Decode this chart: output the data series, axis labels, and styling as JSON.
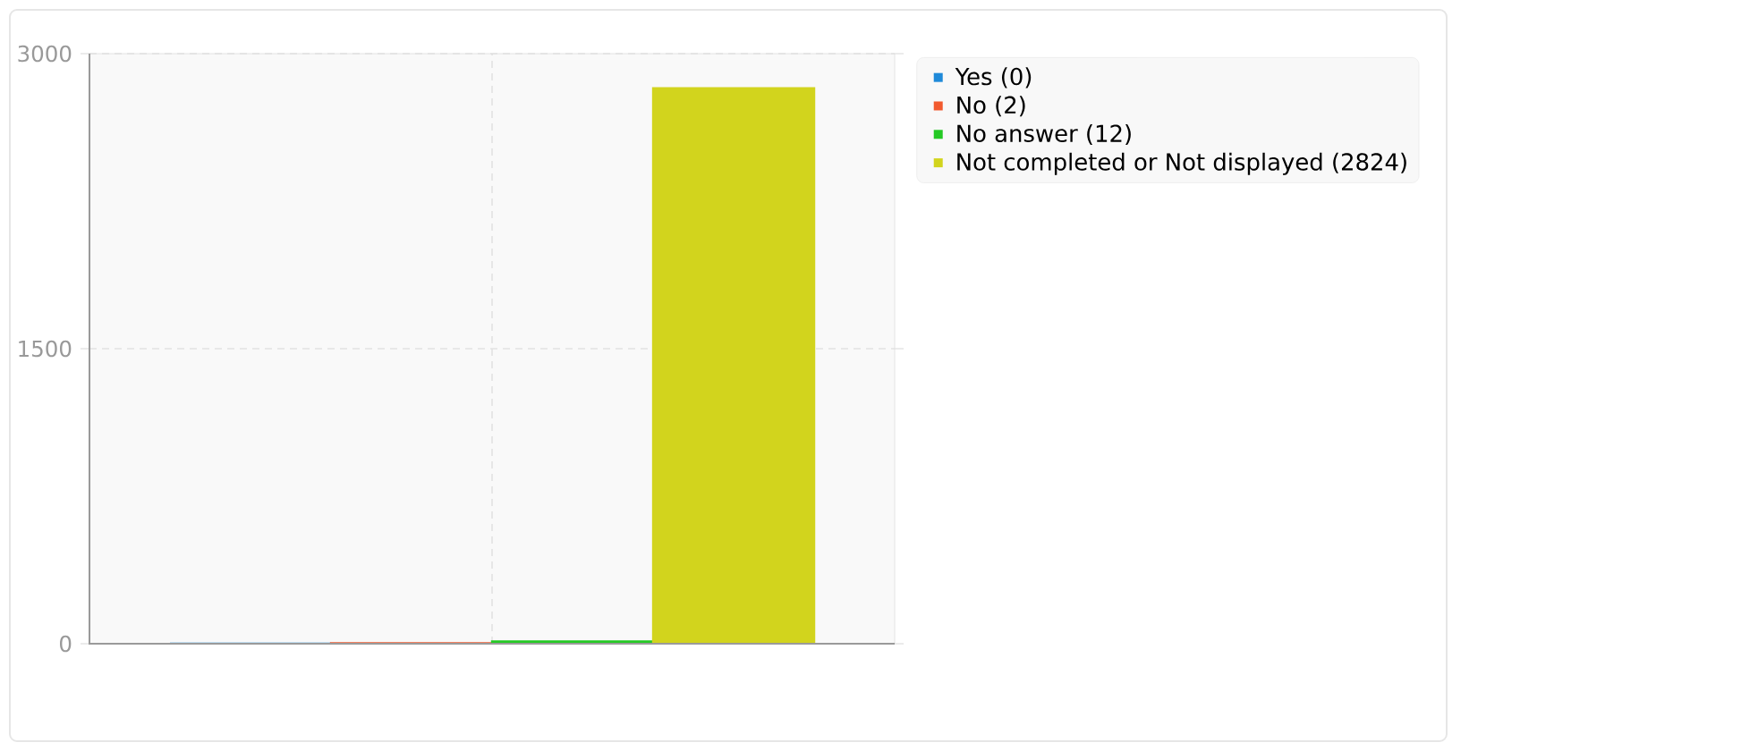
{
  "chart_data": {
    "type": "bar",
    "categories": [
      null
    ],
    "series": [
      {
        "name": "Yes (0)",
        "color": "#1f8ad9",
        "values": [
          0
        ]
      },
      {
        "name": "No (2)",
        "color": "#f25a2e",
        "values": [
          2
        ]
      },
      {
        "name": "No answer (12)",
        "color": "#24c924",
        "values": [
          12
        ]
      },
      {
        "name": "Not completed or Not displayed (2824)",
        "color": "#d2d41d",
        "values": [
          2824
        ]
      }
    ],
    "ylim": [
      0,
      3000
    ],
    "yticks": [
      0,
      1500,
      3000
    ],
    "grid": true,
    "legend": "right"
  }
}
